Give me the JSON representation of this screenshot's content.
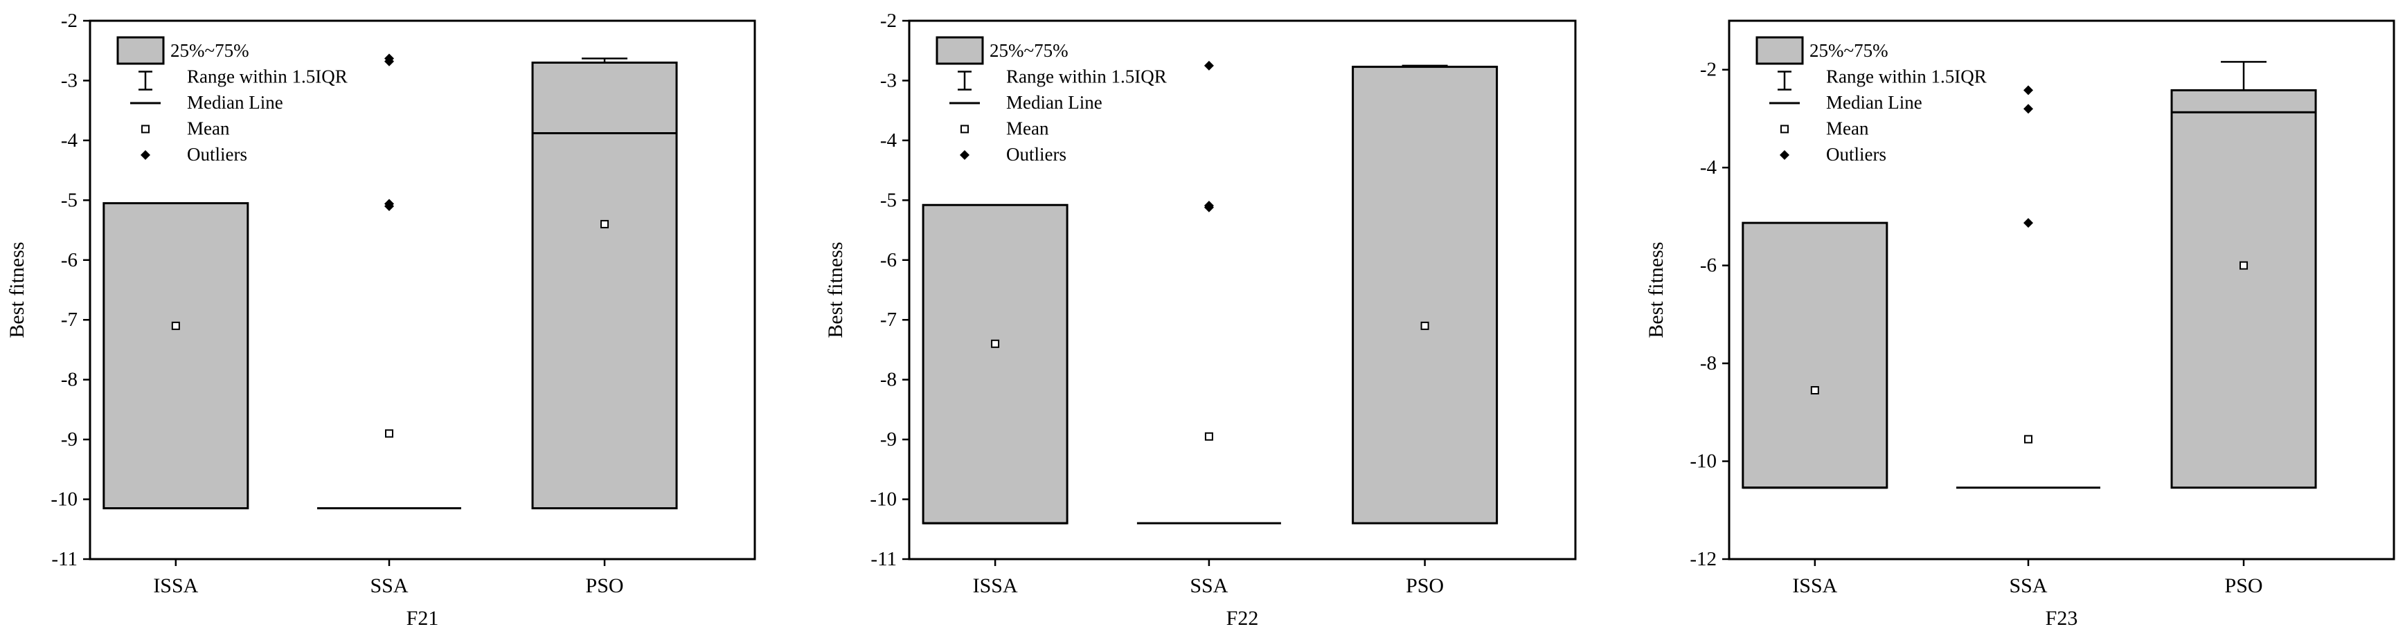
{
  "chart_data": [
    {
      "type": "box",
      "xlabel": "F21",
      "ylabel": "Best fitness",
      "categories": [
        "ISSA",
        "SSA",
        "PSO"
      ],
      "ylim": [
        -11,
        -2
      ],
      "yticks": [
        -2,
        -3,
        -4,
        -5,
        -6,
        -7,
        -8,
        -9,
        -10,
        -11
      ],
      "boxes": [
        {
          "q1": -10.15,
          "q3": -5.05,
          "median": -10.15,
          "mean": -7.1,
          "whisker_low": -10.15,
          "whisker_high": -5.05,
          "outliers": []
        },
        {
          "q1": -10.15,
          "q3": -10.15,
          "median": -10.15,
          "mean": -8.9,
          "whisker_low": -10.15,
          "whisker_high": -10.15,
          "outliers": [
            -2.63,
            -2.68,
            -5.06,
            -5.1
          ]
        },
        {
          "q1": -10.15,
          "q3": -2.7,
          "median": -3.88,
          "mean": -5.4,
          "whisker_low": -10.15,
          "whisker_high": -2.63,
          "outliers": []
        }
      ],
      "legend": {
        "box": "25%~75%",
        "range": "Range within 1.5IQR",
        "median": "Median Line",
        "mean": "Mean",
        "outliers": "Outliers"
      }
    },
    {
      "type": "box",
      "xlabel": "F22",
      "ylabel": "Best fitness",
      "categories": [
        "ISSA",
        "SSA",
        "PSO"
      ],
      "ylim": [
        -11,
        -2
      ],
      "yticks": [
        -2,
        -3,
        -4,
        -5,
        -6,
        -7,
        -8,
        -9,
        -10,
        -11
      ],
      "boxes": [
        {
          "q1": -10.4,
          "q3": -5.08,
          "median": -10.4,
          "mean": -7.4,
          "whisker_low": -10.4,
          "whisker_high": -5.08,
          "outliers": []
        },
        {
          "q1": -10.4,
          "q3": -10.4,
          "median": -10.4,
          "mean": -8.95,
          "whisker_low": -10.4,
          "whisker_high": -10.4,
          "outliers": [
            -2.75,
            -5.09,
            -5.12
          ]
        },
        {
          "q1": -10.4,
          "q3": -2.77,
          "median": -2.77,
          "mean": -7.1,
          "whisker_low": -10.4,
          "whisker_high": -2.75,
          "outliers": []
        }
      ],
      "legend": {
        "box": "25%~75%",
        "range": "Range within 1.5IQR",
        "median": "Median Line",
        "mean": "Mean",
        "outliers": "Outliers"
      }
    },
    {
      "type": "box",
      "xlabel": "F23",
      "ylabel": "Best fitness",
      "categories": [
        "ISSA",
        "SSA",
        "PSO"
      ],
      "ylim": [
        -12,
        -1
      ],
      "yticks": [
        -2,
        -4,
        -6,
        -8,
        -10,
        -12
      ],
      "boxes": [
        {
          "q1": -10.54,
          "q3": -5.13,
          "median": -10.54,
          "mean": -8.55,
          "whisker_low": -10.54,
          "whisker_high": -5.13,
          "outliers": []
        },
        {
          "q1": -10.54,
          "q3": -10.54,
          "median": -10.54,
          "mean": -9.55,
          "whisker_low": -10.54,
          "whisker_high": -10.54,
          "outliers": [
            -2.42,
            -2.8,
            -5.13
          ]
        },
        {
          "q1": -10.54,
          "q3": -2.42,
          "median": -2.87,
          "mean": -6.0,
          "whisker_low": -10.54,
          "whisker_high": -1.84,
          "outliers": []
        }
      ],
      "legend": {
        "box": "25%~75%",
        "range": "Range within 1.5IQR",
        "median": "Median Line",
        "mean": "Mean",
        "outliers": "Outliers"
      }
    }
  ],
  "colors": {
    "box_fill": "#c0c0c0",
    "stroke": "#000000",
    "background": "#ffffff"
  }
}
